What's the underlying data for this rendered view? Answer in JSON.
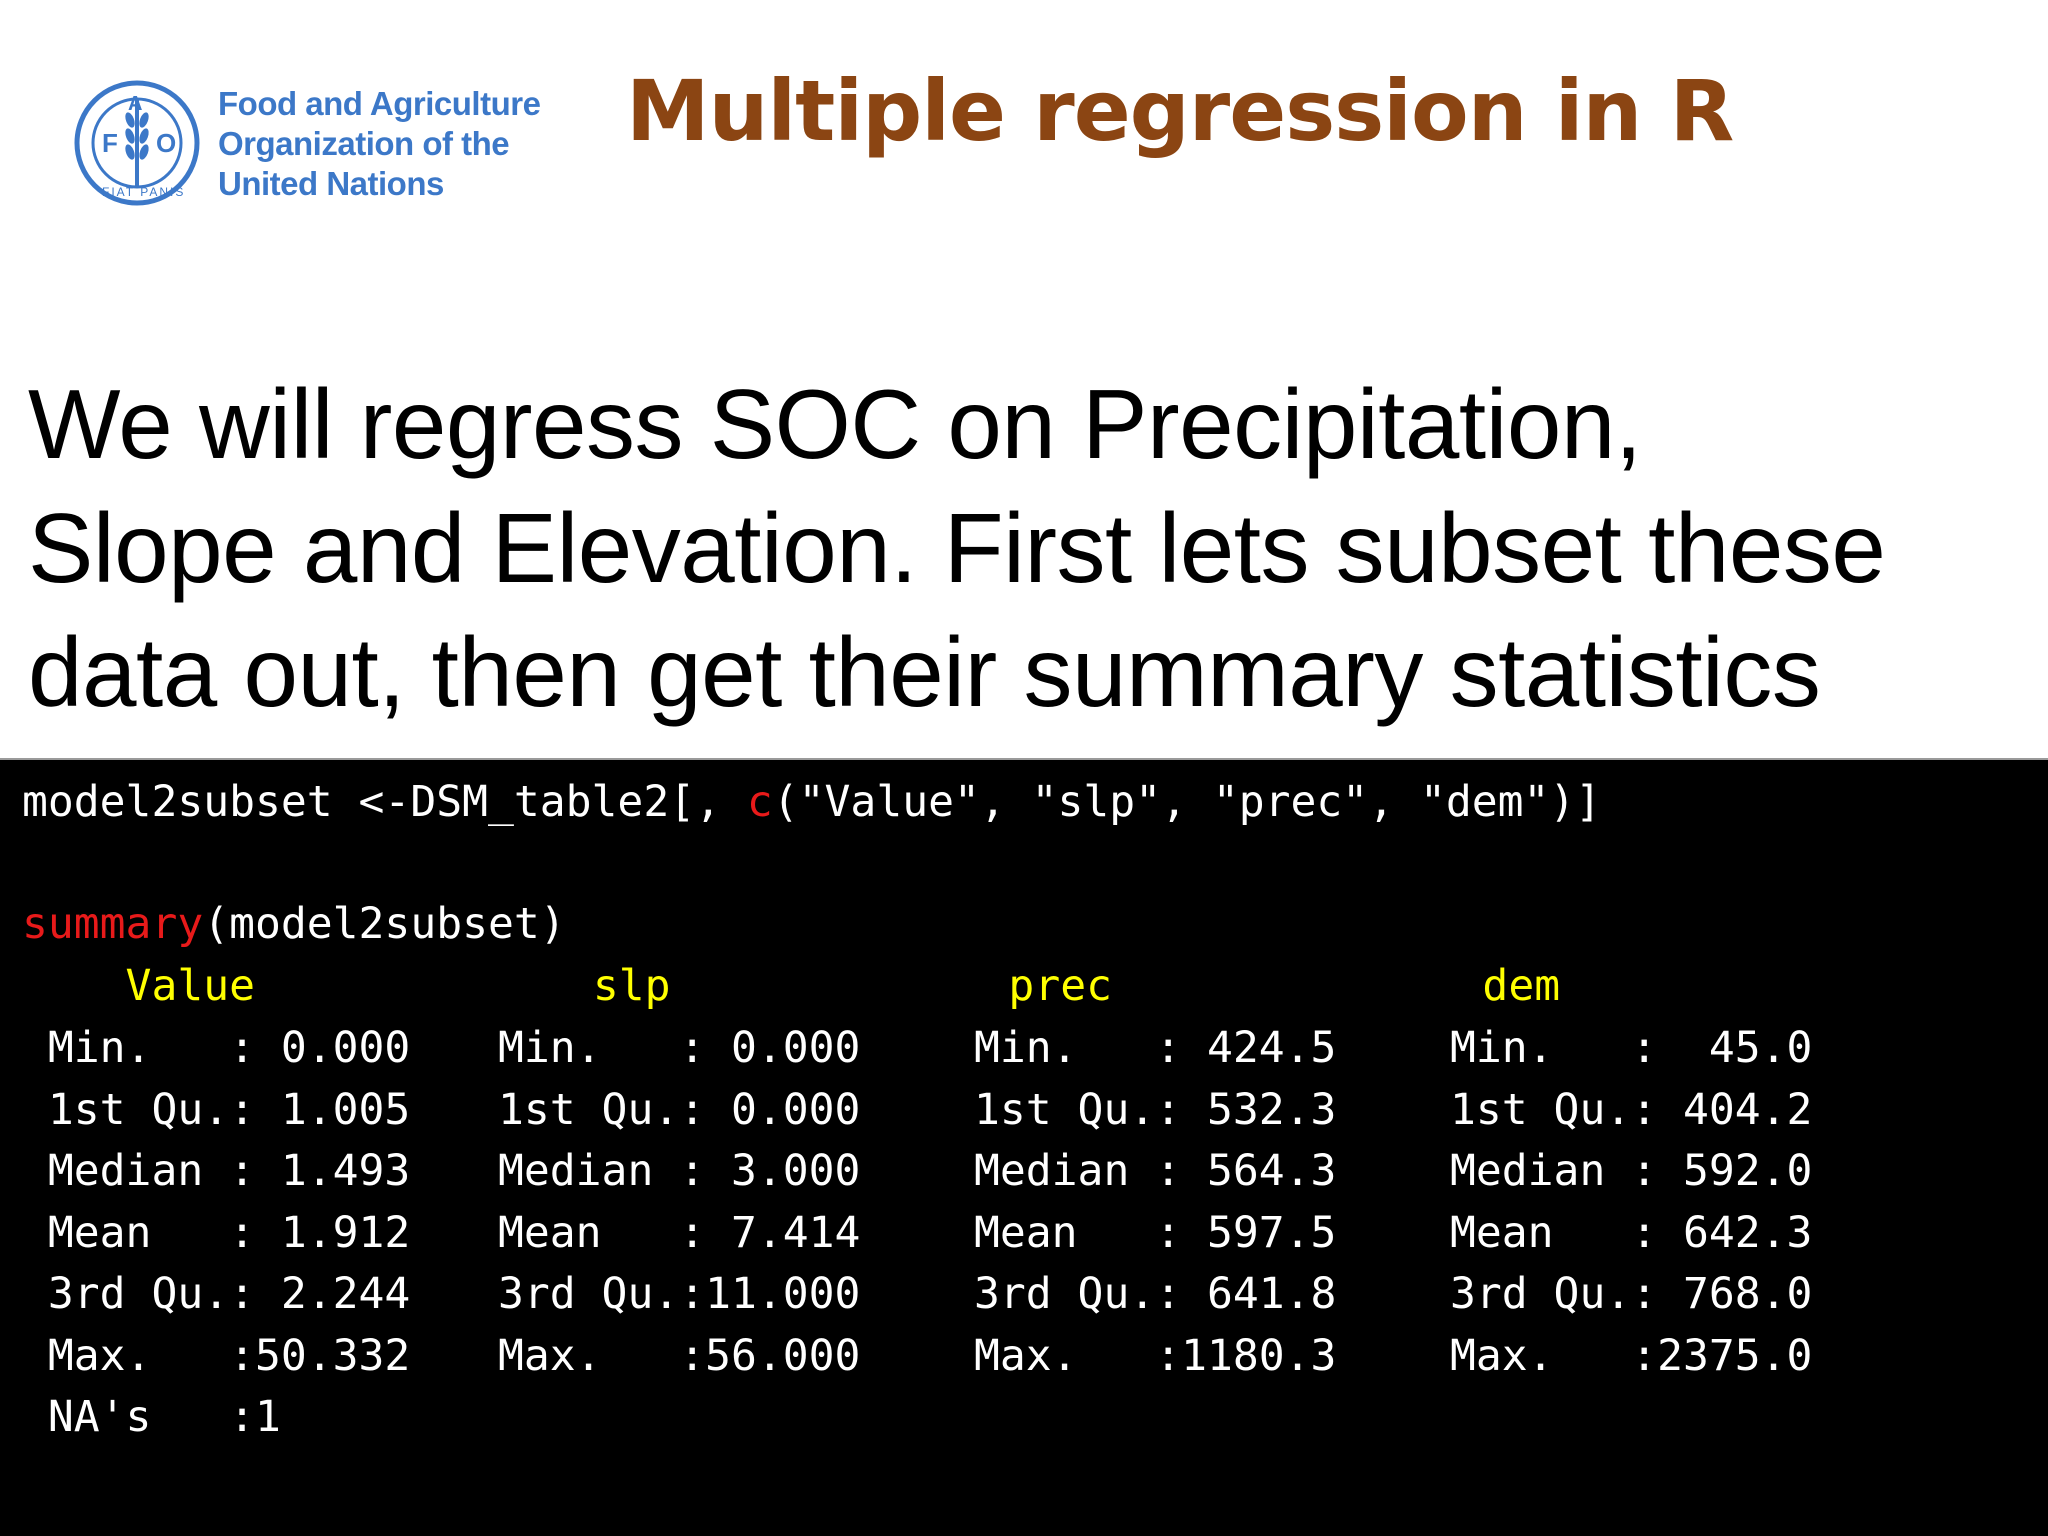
{
  "logo": {
    "emblem_letters": [
      "F",
      "A",
      "O"
    ],
    "motto": "FIAT PANIS",
    "lines": [
      "Food and Agriculture",
      "Organization of the",
      "United Nations"
    ],
    "color": "#3c78c8"
  },
  "title": "Multiple regression in R",
  "title_color": "#8b4513",
  "body_lines": [
    "We will regress SOC on Precipitation,",
    "Slope and Elevation. First lets subset these",
    "data out, then get their summary statistics"
  ],
  "console": {
    "line1": {
      "pre": "model2subset <-DSM_table2[, ",
      "fn": "c",
      "post": "(\"Value\", \"slp\", \"prec\", \"dem\")]"
    },
    "line2": {
      "fn": "summary",
      "post": "(model2subset)"
    },
    "header": [
      "    Value",
      "          slp",
      "              prec",
      "              dem"
    ],
    "columns": [
      {
        "name": "Value",
        "rows": [
          " Min.   : 0.000",
          " 1st Qu.: 1.005",
          " Median : 1.493",
          " Mean   : 1.912",
          " 3rd Qu.: 2.244",
          " Max.   :50.332",
          " NA's   :1"
        ]
      },
      {
        "name": "slp",
        "rows": [
          "Min.   : 0.000",
          "1st Qu.: 0.000",
          "Median : 3.000",
          "Mean   : 7.414",
          "3rd Qu.:11.000",
          "Max.   :56.000"
        ]
      },
      {
        "name": "prec",
        "rows": [
          "Min.   : 424.5",
          "1st Qu.: 532.3",
          "Median : 564.3",
          "Mean   : 597.5",
          "3rd Qu.: 641.8",
          "Max.   :1180.3"
        ]
      },
      {
        "name": "dem",
        "rows": [
          "Min.   :  45.0",
          "1st Qu.: 404.2",
          "Median : 592.0",
          "Mean   : 642.3",
          "3rd Qu.: 768.0",
          "Max.   :2375.0"
        ]
      }
    ],
    "colors": {
      "keyword": "#e81a1a",
      "header": "#ffff00",
      "text": "#ffffff",
      "background": "#000000"
    }
  }
}
